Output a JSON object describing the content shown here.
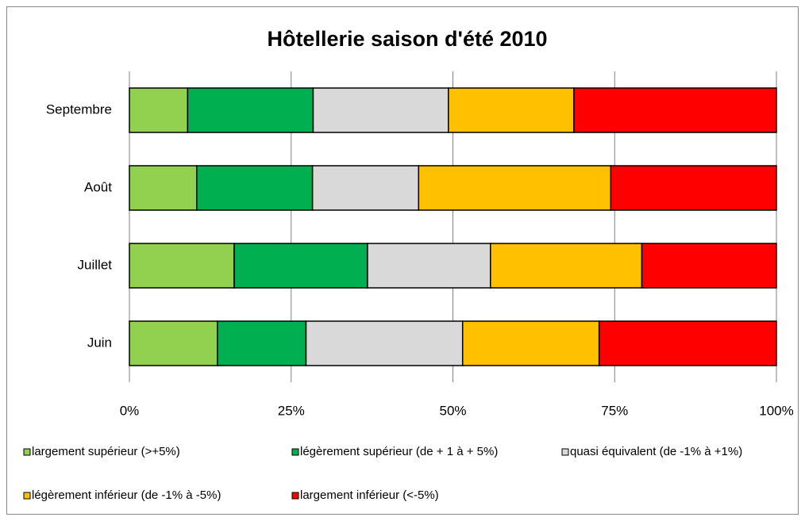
{
  "chart_data": {
    "type": "bar",
    "orientation": "horizontal",
    "stacked": true,
    "title": "Hôtellerie saison d'été 2010",
    "categories": [
      "Juin",
      "Juillet",
      "Août",
      "Septembre"
    ],
    "series": [
      {
        "name": "largement supérieur (>+5%)",
        "color": "#92d050",
        "values": [
          13.6,
          16.2,
          10.4,
          9.0
        ]
      },
      {
        "name": "légèrement supérieur (de + 1 à + 5%)",
        "color": "#00b050",
        "values": [
          13.7,
          20.6,
          17.9,
          19.4
        ]
      },
      {
        "name": "quasi équivalent (de  -1% à +1%)",
        "color": "#d9d9d9",
        "values": [
          24.2,
          19.0,
          16.4,
          20.9
        ]
      },
      {
        "name": "légèrement inférieur (de -1% à -5%)",
        "color": "#ffc000",
        "values": [
          21.1,
          23.4,
          29.7,
          19.4
        ]
      },
      {
        "name": "largement inférieur (<-5%)",
        "color": "#ff0000",
        "values": [
          27.4,
          20.8,
          25.6,
          31.3
        ]
      }
    ],
    "xlim": [
      0,
      100
    ],
    "xticks": [
      {
        "value": 0,
        "label": "0%"
      },
      {
        "value": 25,
        "label": "25%"
      },
      {
        "value": 50,
        "label": "50%"
      },
      {
        "value": 75,
        "label": "75%"
      },
      {
        "value": 100,
        "label": "100%"
      }
    ],
    "grid": true,
    "legend": "bottom"
  }
}
